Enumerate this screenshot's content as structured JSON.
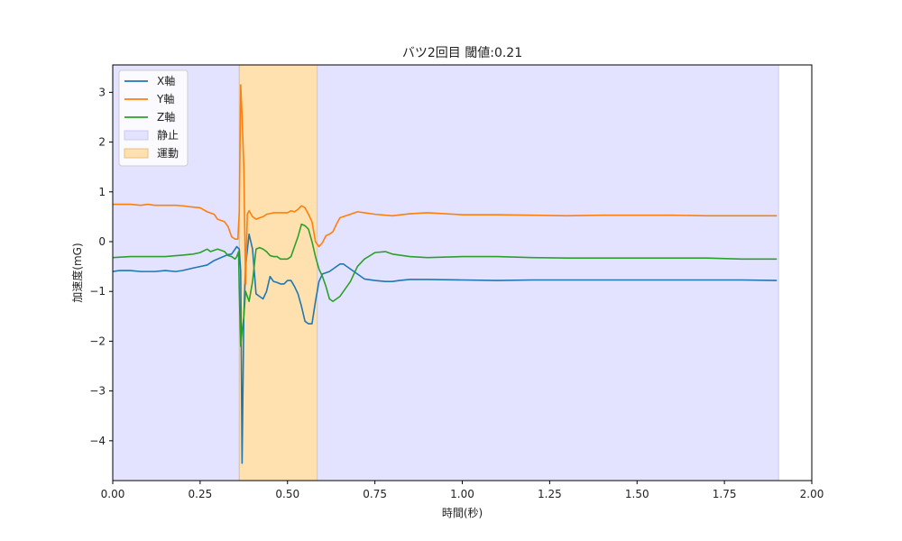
{
  "chart_data": {
    "type": "line",
    "title": "バツ2回目 閾値:0.21",
    "xlabel": "時間(秒)",
    "ylabel": "加速度(mG)",
    "xlim": [
      0.0,
      2.0
    ],
    "ylim": [
      -4.8,
      3.55
    ],
    "xticks": [
      0.0,
      0.25,
      0.5,
      0.75,
      1.0,
      1.25,
      1.5,
      1.75,
      2.0
    ],
    "xtick_labels": [
      "0.00",
      "0.25",
      "0.50",
      "0.75",
      "1.00",
      "1.25",
      "1.50",
      "1.75",
      "2.00"
    ],
    "yticks": [
      -4,
      -3,
      -2,
      -1,
      0,
      1,
      2,
      3
    ],
    "ytick_labels": [
      "−4",
      "−3",
      "−2",
      "−1",
      "0",
      "1",
      "2",
      "3"
    ],
    "grid": false,
    "legend_position": "top-left",
    "regions": [
      {
        "name": "静止",
        "x0": 0.0,
        "x1": 0.362,
        "color": "#e3e3ff"
      },
      {
        "name": "運動",
        "x0": 0.362,
        "x1": 0.585,
        "color": "#ffe1b0"
      },
      {
        "name": "",
        "x0": 0.585,
        "x1": 1.905,
        "color": "#e3e3ff"
      }
    ],
    "series": [
      {
        "name": "X軸",
        "color": "#1f77b4",
        "x": [
          0.0,
          0.02,
          0.05,
          0.08,
          0.1,
          0.12,
          0.15,
          0.18,
          0.2,
          0.23,
          0.25,
          0.27,
          0.29,
          0.31,
          0.33,
          0.34,
          0.355,
          0.362,
          0.366,
          0.37,
          0.375,
          0.38,
          0.39,
          0.4,
          0.41,
          0.42,
          0.43,
          0.44,
          0.45,
          0.46,
          0.47,
          0.48,
          0.49,
          0.5,
          0.51,
          0.52,
          0.53,
          0.54,
          0.55,
          0.56,
          0.57,
          0.58,
          0.59,
          0.6,
          0.62,
          0.63,
          0.64,
          0.65,
          0.66,
          0.67,
          0.68,
          0.7,
          0.72,
          0.75,
          0.78,
          0.8,
          0.82,
          0.85,
          0.9,
          1.0,
          1.1,
          1.2,
          1.3,
          1.4,
          1.5,
          1.6,
          1.7,
          1.8,
          1.9
        ],
        "y": [
          -0.6,
          -0.58,
          -0.58,
          -0.6,
          -0.6,
          -0.6,
          -0.58,
          -0.6,
          -0.58,
          -0.53,
          -0.5,
          -0.47,
          -0.38,
          -0.32,
          -0.26,
          -0.25,
          -0.1,
          -0.15,
          -0.6,
          -4.45,
          -1.5,
          -0.5,
          0.15,
          -0.15,
          -1.05,
          -1.1,
          -1.15,
          -1.0,
          -0.7,
          -0.8,
          -0.82,
          -0.85,
          -0.85,
          -0.78,
          -0.78,
          -0.9,
          -1.05,
          -1.3,
          -1.6,
          -1.65,
          -1.65,
          -1.2,
          -0.8,
          -0.65,
          -0.6,
          -0.55,
          -0.5,
          -0.45,
          -0.45,
          -0.5,
          -0.55,
          -0.65,
          -0.75,
          -0.78,
          -0.8,
          -0.8,
          -0.78,
          -0.76,
          -0.76,
          -0.77,
          -0.78,
          -0.77,
          -0.77,
          -0.77,
          -0.77,
          -0.77,
          -0.77,
          -0.77,
          -0.78
        ]
      },
      {
        "name": "Y軸",
        "color": "#ff7f0e",
        "x": [
          0.0,
          0.05,
          0.08,
          0.1,
          0.12,
          0.15,
          0.18,
          0.2,
          0.22,
          0.25,
          0.27,
          0.29,
          0.3,
          0.32,
          0.33,
          0.34,
          0.35,
          0.358,
          0.362,
          0.366,
          0.37,
          0.375,
          0.38,
          0.385,
          0.39,
          0.4,
          0.41,
          0.42,
          0.43,
          0.44,
          0.46,
          0.5,
          0.51,
          0.52,
          0.53,
          0.54,
          0.55,
          0.56,
          0.57,
          0.58,
          0.59,
          0.6,
          0.61,
          0.62,
          0.63,
          0.64,
          0.65,
          0.68,
          0.7,
          0.72,
          0.75,
          0.8,
          0.85,
          0.9,
          1.0,
          1.1,
          1.2,
          1.3,
          1.4,
          1.5,
          1.6,
          1.7,
          1.8,
          1.9
        ],
        "y": [
          0.75,
          0.75,
          0.73,
          0.75,
          0.73,
          0.73,
          0.73,
          0.72,
          0.7,
          0.68,
          0.6,
          0.55,
          0.45,
          0.4,
          0.3,
          0.1,
          0.05,
          0.05,
          0.6,
          3.15,
          2.5,
          1.5,
          -0.85,
          0.55,
          0.62,
          0.5,
          0.45,
          0.48,
          0.5,
          0.55,
          0.58,
          0.58,
          0.62,
          0.6,
          0.65,
          0.72,
          0.68,
          0.55,
          0.4,
          0.0,
          -0.1,
          -0.02,
          0.12,
          0.15,
          0.2,
          0.35,
          0.48,
          0.55,
          0.6,
          0.58,
          0.55,
          0.52,
          0.56,
          0.58,
          0.54,
          0.54,
          0.53,
          0.52,
          0.53,
          0.53,
          0.53,
          0.52,
          0.52,
          0.52
        ]
      },
      {
        "name": "Z軸",
        "color": "#2ca02c",
        "x": [
          0.0,
          0.05,
          0.1,
          0.15,
          0.2,
          0.23,
          0.25,
          0.27,
          0.28,
          0.3,
          0.32,
          0.33,
          0.34,
          0.35,
          0.355,
          0.36,
          0.362,
          0.366,
          0.37,
          0.375,
          0.38,
          0.39,
          0.4,
          0.41,
          0.42,
          0.43,
          0.44,
          0.45,
          0.46,
          0.47,
          0.48,
          0.49,
          0.5,
          0.51,
          0.52,
          0.53,
          0.54,
          0.55,
          0.56,
          0.57,
          0.58,
          0.59,
          0.6,
          0.61,
          0.62,
          0.63,
          0.64,
          0.65,
          0.66,
          0.68,
          0.7,
          0.72,
          0.75,
          0.78,
          0.8,
          0.85,
          0.9,
          1.0,
          1.1,
          1.2,
          1.3,
          1.4,
          1.5,
          1.6,
          1.7,
          1.8,
          1.9
        ],
        "y": [
          -0.32,
          -0.3,
          -0.3,
          -0.3,
          -0.27,
          -0.25,
          -0.22,
          -0.15,
          -0.2,
          -0.15,
          -0.2,
          -0.28,
          -0.3,
          -0.35,
          -0.3,
          -0.2,
          -1.0,
          -2.1,
          -1.8,
          -1.5,
          -1.0,
          -1.2,
          -0.8,
          -0.15,
          -0.12,
          -0.15,
          -0.2,
          -0.28,
          -0.3,
          -0.3,
          -0.35,
          -0.35,
          -0.35,
          -0.3,
          -0.1,
          0.1,
          0.35,
          0.32,
          0.25,
          0.0,
          -0.3,
          -0.55,
          -0.7,
          -0.9,
          -1.15,
          -1.2,
          -1.15,
          -1.1,
          -1.0,
          -0.8,
          -0.5,
          -0.35,
          -0.22,
          -0.2,
          -0.25,
          -0.3,
          -0.32,
          -0.3,
          -0.3,
          -0.32,
          -0.33,
          -0.33,
          -0.33,
          -0.33,
          -0.33,
          -0.35,
          -0.35
        ]
      }
    ]
  }
}
